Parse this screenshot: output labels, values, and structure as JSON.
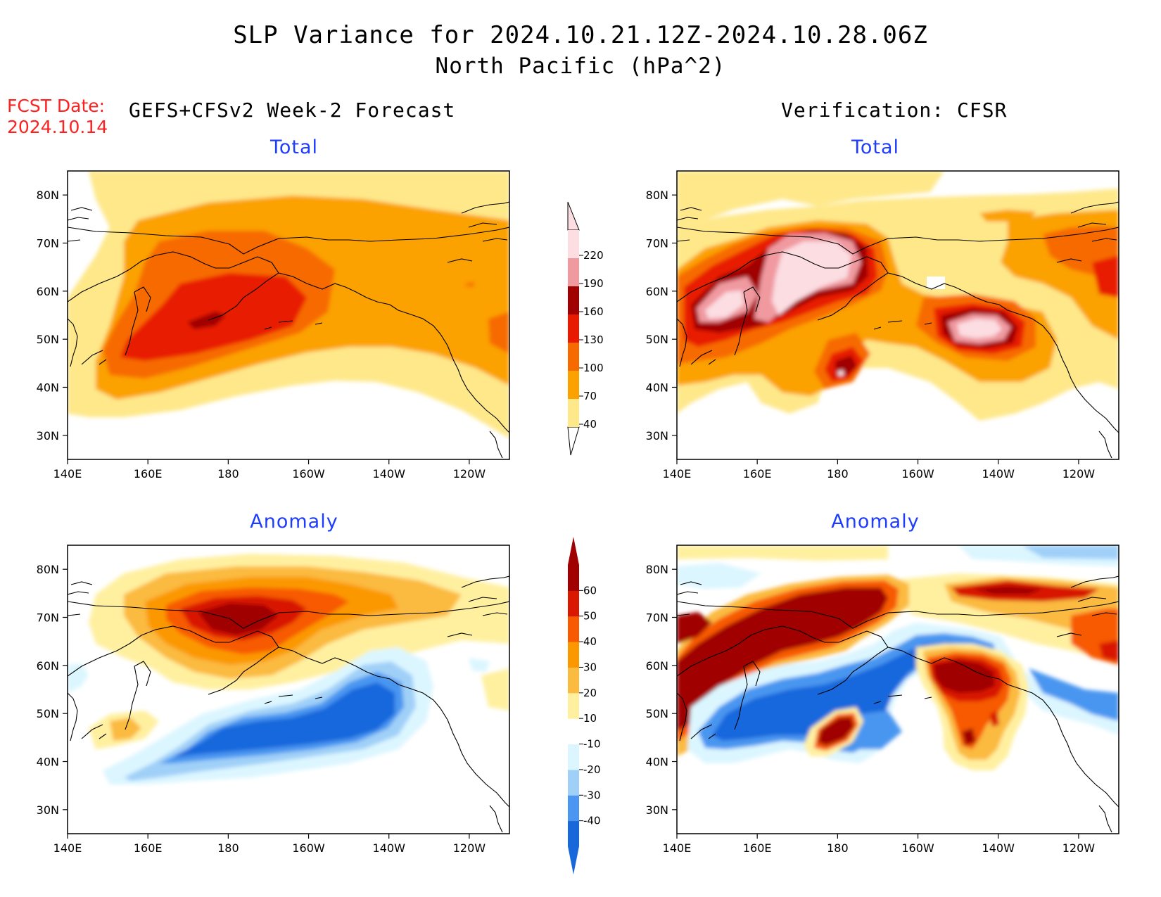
{
  "title_line1": "SLP Variance for 2024.10.21.12Z-2024.10.28.06Z",
  "title_line2": "North Pacific (hPa^2)",
  "fcst_label": "FCST Date:",
  "fcst_date": "2024.10.14",
  "left_column_title": "GEFS+CFSv2 Week-2 Forecast",
  "right_column_title": "Verification: CFSR",
  "panels": {
    "tl": "Total",
    "tr": "Total",
    "bl": "Anomaly",
    "br": "Anomaly"
  },
  "axes": {
    "lon_labels": [
      "140E",
      "160E",
      "180",
      "160W",
      "140W",
      "120W"
    ],
    "lat_labels": [
      "80N",
      "70N",
      "60N",
      "50N",
      "40N",
      "30N"
    ],
    "lon_range": [
      140,
      250
    ],
    "lat_range": [
      25,
      85
    ]
  },
  "colorbar_total": {
    "levels": [
      "40",
      "70",
      "100",
      "130",
      "160",
      "190",
      "220"
    ],
    "colors": [
      "#fee88a",
      "#fba100",
      "#f76a00",
      "#e81b00",
      "#a00000",
      "#f09aa0",
      "#fbdde2"
    ]
  },
  "colorbar_anomaly": {
    "levels": [
      "-40",
      "-30",
      "-20",
      "-10",
      "10",
      "20",
      "30",
      "40",
      "50",
      "60"
    ],
    "colors": [
      "#1868dc",
      "#4a96f0",
      "#a0d0f8",
      "#dcf6ff",
      "#ffffff",
      "#fff0a0",
      "#fbba40",
      "#fb9800",
      "#f75a00",
      "#d81800",
      "#a00000"
    ]
  },
  "colors": {
    "title_red": "#ff2020",
    "panel_title_blue": "#1e3cff"
  }
}
